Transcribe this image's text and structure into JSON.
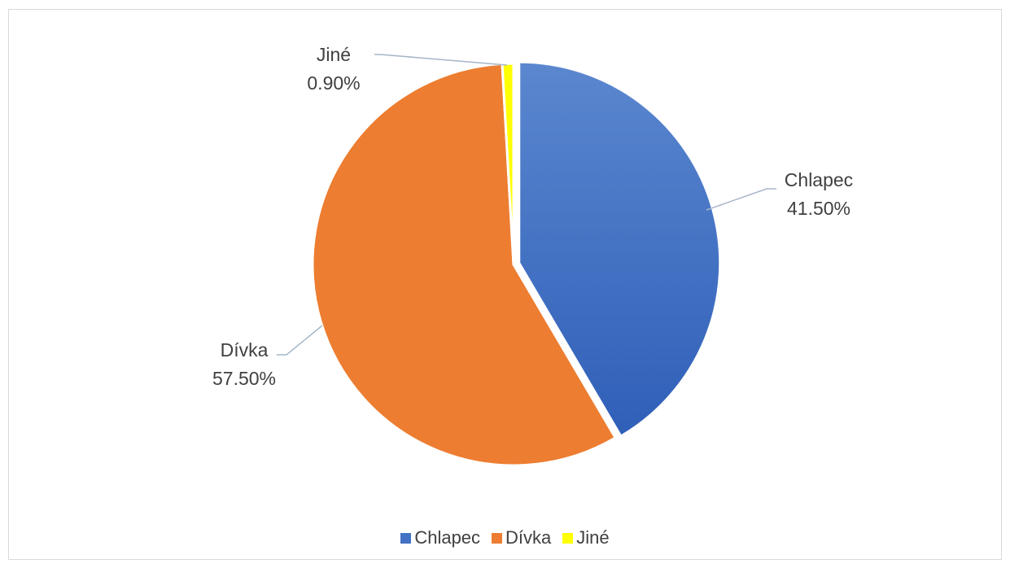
{
  "chart_data": {
    "type": "pie",
    "title": "",
    "slices": [
      {
        "label": "Chlapec",
        "value": 41.5,
        "value_label": "41.50%",
        "color": "#4472c4"
      },
      {
        "label": "Dívka",
        "value": 57.5,
        "value_label": "57.50%",
        "color": "#ed7d31"
      },
      {
        "label": "Jiné",
        "value": 0.9,
        "value_label": "0.90%",
        "color": "#ffff00"
      }
    ],
    "legend_position": "bottom",
    "exploded_slice": "Chlapec"
  }
}
